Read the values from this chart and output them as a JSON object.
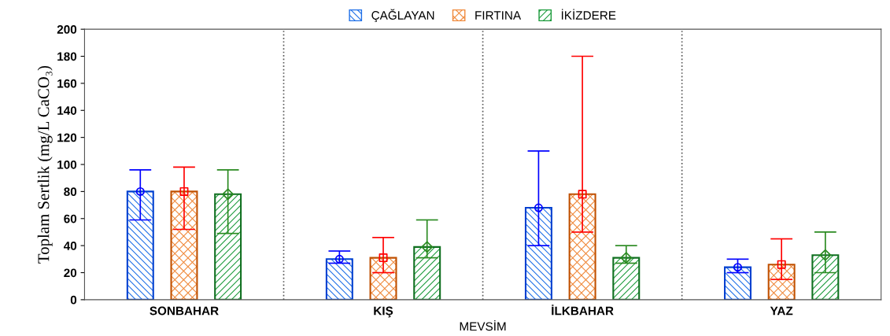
{
  "chart_data": {
    "type": "bar",
    "xlabel": "MEVSİM",
    "ylabel": "Toplam Sertlik (mg/L CaCO₃)",
    "categories": [
      "SONBAHAR",
      "KIŞ",
      "İLKBAHAR",
      "YAZ"
    ],
    "series": [
      {
        "name": "ÇAĞLAYAN",
        "color": "#1e6fe8",
        "values": [
          80,
          30,
          68,
          24
        ]
      },
      {
        "name": "FIRTINA",
        "color": "#f08a3c",
        "values": [
          80,
          31,
          78,
          26
        ]
      },
      {
        "name": "İKİZDERE",
        "color": "#1a9a3a",
        "values": [
          78,
          39,
          31,
          33
        ]
      },
      {
        "type": "scatter",
        "color": "#0000ff",
        "marker": "circle",
        "x": [
          "SONBAHAR",
          "KIŞ",
          "İLKBAHAR",
          "YAZ"
        ],
        "values": [
          80,
          30,
          68,
          24
        ],
        "errors": [
          [
            59,
            96
          ],
          [
            27,
            36
          ],
          [
            40,
            110
          ],
          [
            20,
            30
          ]
        ]
      },
      {
        "type": "scatter",
        "color": "#ff0000",
        "marker": "square",
        "x": [
          "SONBAHAR",
          "KIŞ",
          "İLKBAHAR",
          "YAZ"
        ],
        "values": [
          80,
          31,
          78,
          26
        ],
        "errors": [
          [
            52,
            98
          ],
          [
            20,
            46
          ],
          [
            50,
            180
          ],
          [
            15,
            45
          ]
        ]
      },
      {
        "type": "scatter",
        "color": "#2a8a20",
        "marker": "diamond",
        "x": [
          "SONBAHAR",
          "KIŞ",
          "İLKBAHAR",
          "YAZ"
        ],
        "values": [
          78,
          39,
          31,
          33
        ],
        "errors": [
          [
            49,
            96
          ],
          [
            31,
            59
          ],
          [
            27,
            40
          ],
          [
            20,
            50
          ]
        ]
      }
    ],
    "ylim": [
      0,
      200
    ],
    "yticks": [
      0,
      20,
      40,
      60,
      80,
      100,
      120,
      140,
      160,
      180,
      200
    ],
    "legend": "top",
    "grid": false
  }
}
